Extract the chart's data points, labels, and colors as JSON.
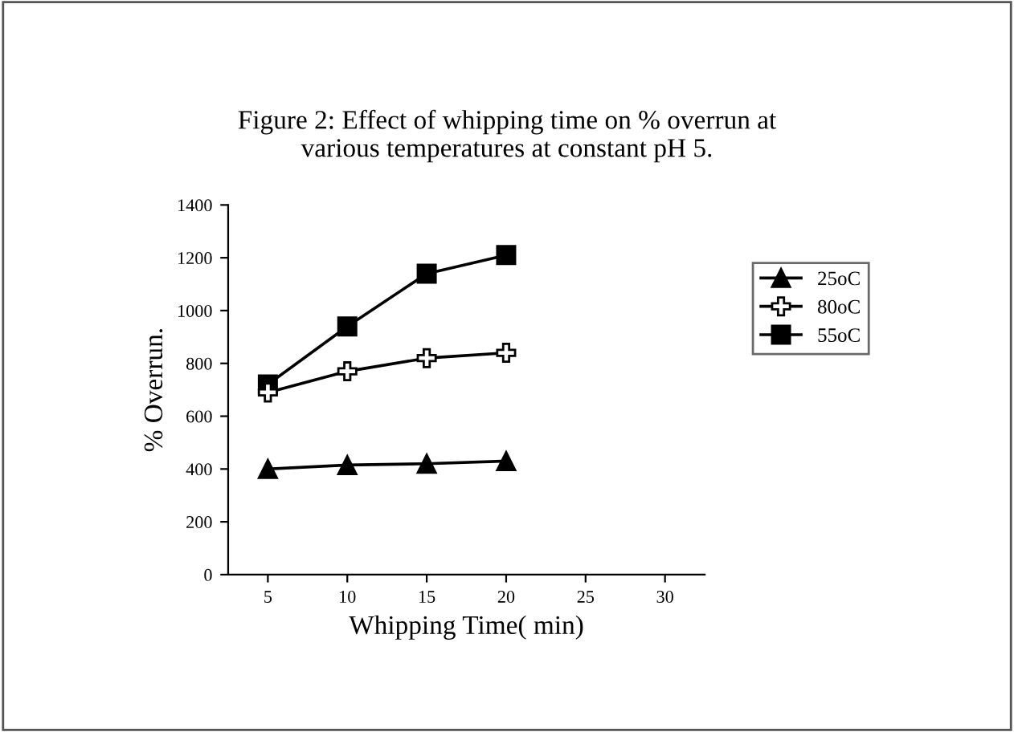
{
  "chart_data": {
    "type": "line",
    "title": "Figure 2: Effect of whipping time on % overrun at\nvarious temperatures at constant pH 5.",
    "xlabel": "Whipping Time( min)",
    "ylabel": "% Overrun.",
    "x": [
      5,
      10,
      15,
      20
    ],
    "xlim": [
      2.5,
      32.5
    ],
    "xticks": [
      5,
      10,
      15,
      20,
      25,
      30
    ],
    "ylim": [
      0,
      1400
    ],
    "yticks": [
      0,
      200,
      400,
      600,
      800,
      1000,
      1200,
      1400
    ],
    "grid": false,
    "legend": "right",
    "series": [
      {
        "name": "25oC",
        "color": "#000000",
        "marker": "triangle",
        "values": [
          400,
          415,
          420,
          430
        ]
      },
      {
        "name": "80oC",
        "color": "#000000",
        "marker": "cross",
        "values": [
          690,
          770,
          820,
          840
        ]
      },
      {
        "name": "55oC",
        "color": "#000000",
        "marker": "square",
        "values": [
          720,
          940,
          1140,
          1210
        ]
      }
    ]
  }
}
